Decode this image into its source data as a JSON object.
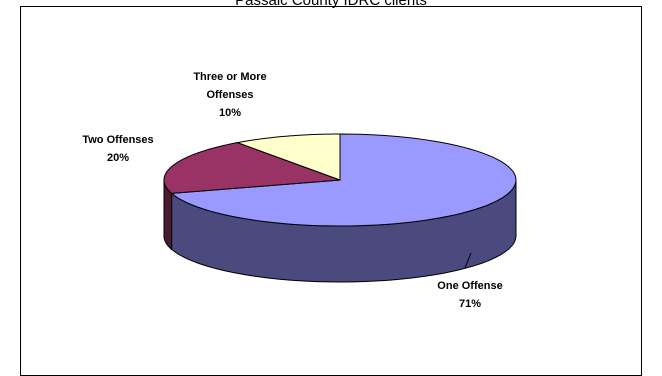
{
  "chart_data": {
    "type": "pie",
    "title": "Passaic County IDRC clients",
    "slices": [
      {
        "label": "One Offense",
        "value": 71,
        "value_label": "71%",
        "color": "#9999ff",
        "side_color": "#4a4a7f"
      },
      {
        "label": "Two Offenses",
        "value": 20,
        "value_label": "20%",
        "color": "#993366",
        "side_color": "#4c1933"
      },
      {
        "label": "Three or More Offenses",
        "value": 10,
        "value_label": "10%",
        "color": "#ffffcc",
        "side_color": "#7f7f66"
      }
    ],
    "three_d": true
  }
}
